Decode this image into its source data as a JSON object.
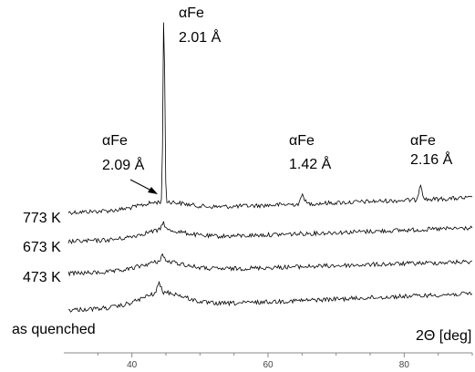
{
  "chart_data": {
    "type": "line",
    "title": "",
    "xlabel": "2Θ [deg]",
    "ylabel": "",
    "xlim": [
      30,
      90
    ],
    "x_ticks": [
      "40",
      "60",
      "80"
    ],
    "x_tick_values": [
      40,
      60,
      80
    ],
    "grid": false,
    "series": [
      {
        "name": "773 K",
        "peaks": [
          {
            "x": 44.7,
            "height": 1.0
          },
          {
            "x": 65.1,
            "height": 0.05
          },
          {
            "x": 82.4,
            "height": 0.08
          }
        ]
      },
      {
        "name": "673 K",
        "peaks": [
          {
            "x": 44.6,
            "height": 0.04
          }
        ]
      },
      {
        "name": "473 K",
        "peaks": [
          {
            "x": 44.5,
            "height": 0.035
          }
        ]
      },
      {
        "name": "as quenched",
        "peaks": [
          {
            "x": 44.0,
            "height": 0.05
          }
        ]
      }
    ],
    "annotations": [
      {
        "phase": "αFe",
        "d_spacing": "2.09 Å"
      },
      {
        "phase": "αFe",
        "d_spacing": "2.01 Å"
      },
      {
        "phase": "αFe",
        "d_spacing": "1.42 Å"
      },
      {
        "phase": "αFe",
        "d_spacing": "2.16 Å"
      }
    ]
  }
}
